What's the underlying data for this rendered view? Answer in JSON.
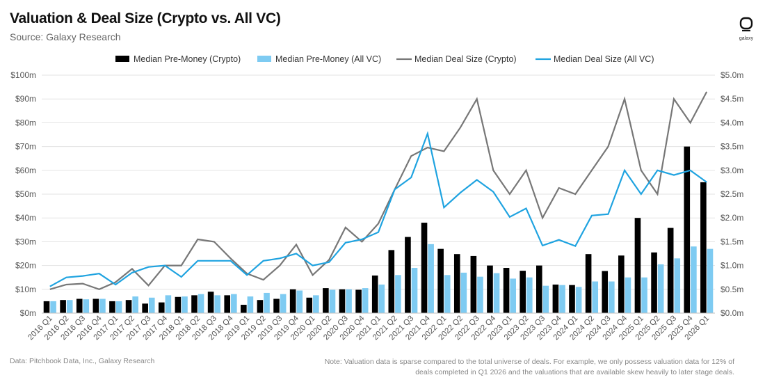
{
  "header": {
    "title": "Valuation & Deal Size (Crypto vs. All VC)",
    "subtitle": "Source: Galaxy Research",
    "logo_text": "galaxy"
  },
  "footer": {
    "source": "Data: Pitchbook Data, Inc., Galaxy Research",
    "note": "Note: Valuation data is sparse compared to the total universe of deals. For example, we only possess valuation data for 12% of deals completed in Q1 2026 and the valuations that are available skew heavily to later stage deals."
  },
  "colors": {
    "crypto_bar": "#000000",
    "allvc_bar": "#7ecbf2",
    "crypto_line": "#777777",
    "allvc_line": "#1fa3e0",
    "grid": "#e3e3e3"
  },
  "chart_data": {
    "type": "bar",
    "categories": [
      "2016 Q1",
      "2016 Q2",
      "2016 Q3",
      "2016 Q4",
      "2017 Q1",
      "2017 Q2",
      "2017 Q3",
      "2017 Q4",
      "2018 Q1",
      "2018 Q2",
      "2018 Q3",
      "2018 Q4",
      "2019 Q1",
      "2019 Q2",
      "2019 Q3",
      "2019 Q4",
      "2020 Q1",
      "2020 Q2",
      "2020 Q3",
      "2020 Q4",
      "2021 Q1",
      "2021 Q2",
      "2021 Q3",
      "2021 Q4",
      "2022 Q1",
      "2022 Q2",
      "2022 Q3",
      "2022 Q4",
      "2023 Q1",
      "2023 Q2",
      "2023 Q3",
      "2023 Q4",
      "2024 Q1",
      "2024 Q2",
      "2024 Q3",
      "2024 Q4",
      "2025 Q1",
      "2025 Q2",
      "2025 Q3",
      "2025 Q4",
      "2026 Q1"
    ],
    "left_axis": {
      "ylim": [
        0,
        100
      ],
      "ticks": [
        "$0m",
        "$10m",
        "$20m",
        "$30m",
        "$40m",
        "$50m",
        "$60m",
        "$70m",
        "$80m",
        "$90m",
        "$100m"
      ]
    },
    "right_axis": {
      "ylim": [
        0,
        5
      ],
      "ticks": [
        "$0.0m",
        "$0.5m",
        "$1.0m",
        "$1.5m",
        "$2.0m",
        "$2.5m",
        "$3.0m",
        "$3.5m",
        "$4.0m",
        "$4.5m",
        "$5.0m"
      ]
    },
    "grid": true,
    "legend_position": "top",
    "series": [
      {
        "name": "Median Pre-Money (Crypto)",
        "kind": "bar",
        "axis": "left",
        "values": [
          5,
          5.5,
          6,
          6,
          5,
          5.5,
          4,
          4.5,
          6.8,
          7.5,
          9,
          7.5,
          3.5,
          5.5,
          6,
          10,
          6.5,
          10.5,
          10,
          9.8,
          15.8,
          26.5,
          32,
          38,
          27,
          24.8,
          24,
          20,
          19,
          17.8,
          20,
          12,
          11.8,
          24.8,
          17.7,
          24.2,
          40,
          25.5,
          35.8,
          70,
          55
        ]
      },
      {
        "name": "Median Pre-Money (All VC)",
        "kind": "bar",
        "axis": "left",
        "values": [
          5,
          5.5,
          5.8,
          6,
          5,
          7,
          6.5,
          7.5,
          7,
          8,
          7.5,
          8,
          7,
          8.5,
          8,
          9.5,
          7.5,
          9.8,
          10,
          10.5,
          12,
          16,
          19,
          29,
          16,
          17,
          15.3,
          16.8,
          14.5,
          15,
          11.5,
          11.8,
          11,
          13.3,
          13.3,
          15,
          15,
          20.5,
          23,
          28,
          27
        ]
      },
      {
        "name": "Median Deal Size (Crypto)",
        "kind": "line",
        "axis": "right",
        "values": [
          0.5,
          0.6,
          0.62,
          0.5,
          0.65,
          0.93,
          0.58,
          1.0,
          1.0,
          1.55,
          1.5,
          1.15,
          0.83,
          0.7,
          1.0,
          1.44,
          0.8,
          1.12,
          1.8,
          1.5,
          1.88,
          2.6,
          3.3,
          3.48,
          3.4,
          3.9,
          4.5,
          3.0,
          2.5,
          3.0,
          2.0,
          2.63,
          2.5,
          3.0,
          3.5,
          4.5,
          3.0,
          2.5,
          4.5,
          4.0,
          4.65
        ]
      },
      {
        "name": "Median Deal Size (All VC)",
        "kind": "line",
        "axis": "right",
        "values": [
          0.56,
          0.75,
          0.78,
          0.83,
          0.6,
          0.85,
          0.97,
          1.0,
          0.76,
          1.1,
          1.1,
          1.1,
          0.8,
          1.1,
          1.15,
          1.25,
          1.0,
          1.07,
          1.48,
          1.55,
          1.7,
          2.6,
          2.85,
          3.77,
          2.22,
          2.53,
          2.8,
          2.55,
          2.02,
          2.2,
          1.42,
          1.54,
          1.41,
          2.05,
          2.08,
          3.0,
          2.5,
          3.0,
          2.9,
          3.0,
          2.75
        ]
      }
    ]
  }
}
